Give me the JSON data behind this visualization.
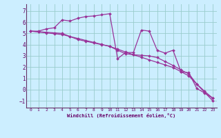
{
  "xlabel": "Windchill (Refroidissement éolien,°C)",
  "background_color": "#cceeff",
  "grid_color": "#99cccc",
  "line_color": "#993399",
  "xlim": [
    -0.5,
    23.5
  ],
  "ylim": [
    -1.6,
    7.6
  ],
  "xticks": [
    0,
    1,
    2,
    3,
    4,
    5,
    6,
    7,
    8,
    9,
    10,
    11,
    12,
    13,
    14,
    15,
    16,
    17,
    18,
    19,
    20,
    21,
    22,
    23
  ],
  "yticks": [
    -1,
    0,
    1,
    2,
    3,
    4,
    5,
    6,
    7
  ],
  "series1_x": [
    0,
    1,
    2,
    3,
    4,
    5,
    6,
    7,
    8,
    9,
    10,
    11,
    12,
    13,
    14,
    15,
    16,
    17,
    18,
    19,
    20,
    21,
    22,
    23
  ],
  "series1_y": [
    5.2,
    5.2,
    5.4,
    5.5,
    6.2,
    6.1,
    6.35,
    6.5,
    6.55,
    6.65,
    6.75,
    2.75,
    3.3,
    3.3,
    5.3,
    5.2,
    3.5,
    3.25,
    3.5,
    1.6,
    1.5,
    0.1,
    -0.3,
    -0.75
  ],
  "series2_x": [
    0,
    1,
    2,
    3,
    4,
    5,
    6,
    7,
    8,
    9,
    10,
    11,
    12,
    13,
    14,
    15,
    16,
    17,
    18,
    19,
    20,
    21,
    22,
    23
  ],
  "series2_y": [
    5.2,
    5.15,
    5.1,
    5.05,
    5.0,
    4.72,
    4.45,
    4.3,
    4.15,
    4.0,
    3.85,
    3.5,
    3.2,
    3.1,
    3.05,
    3.0,
    2.85,
    2.5,
    2.15,
    1.75,
    1.4,
    0.5,
    -0.15,
    -0.75
  ],
  "series3_x": [
    0,
    1,
    2,
    3,
    4,
    5,
    6,
    7,
    8,
    9,
    10,
    11,
    12,
    13,
    14,
    15,
    16,
    17,
    18,
    19,
    20,
    21,
    22,
    23
  ],
  "series3_y": [
    5.2,
    5.12,
    5.05,
    4.97,
    4.9,
    4.72,
    4.55,
    4.37,
    4.2,
    4.02,
    3.85,
    3.6,
    3.35,
    3.1,
    2.88,
    2.65,
    2.42,
    2.2,
    1.97,
    1.6,
    1.22,
    0.48,
    -0.25,
    -0.98
  ]
}
